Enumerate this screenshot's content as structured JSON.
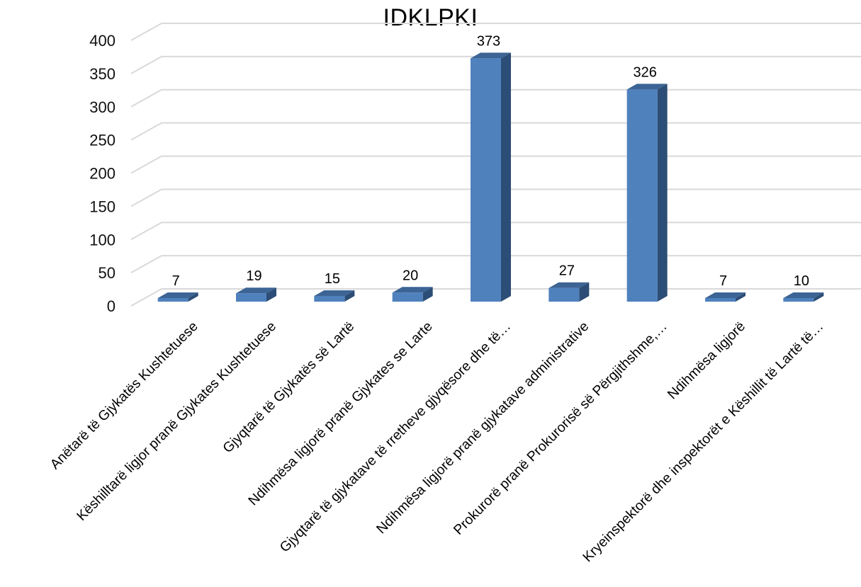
{
  "chart_data": {
    "type": "bar",
    "title": "IDKLPKI",
    "xlabel": "",
    "ylabel": "",
    "ylim": [
      0,
      400
    ],
    "yticks": [
      0,
      50,
      100,
      150,
      200,
      250,
      300,
      350,
      400
    ],
    "grid": true,
    "legend": "none",
    "style": "3d-column",
    "categories": [
      "Anëtarë të Gjykatës Kushtetuese",
      "Këshilltarë ligjor pranë Gjykates Kushtetuese",
      "Gjyqtarë të Gjykatës së Lartë",
      "Ndihmësa ligjorë pranë Gjykates se Larte",
      "Gjyqtarë të gjykatave të rretheve gjyqësore dhe të…",
      "Ndihmësa ligjorë pranë gjykatave administrative",
      "Prokurorë pranë Prokurorisë së Përgjithshme,…",
      "Ndihmësa ligjorë",
      "Kryeinspektorë dhe inspektorët e Këshillit të Lartë të…"
    ],
    "values": [
      7,
      19,
      15,
      20,
      373,
      27,
      326,
      7,
      10
    ],
    "colors": {
      "bar_front": "#4f81bd",
      "bar_side": "#2c4d75",
      "bar_top": "#3c6494",
      "grid": "#d9d9d9"
    }
  }
}
